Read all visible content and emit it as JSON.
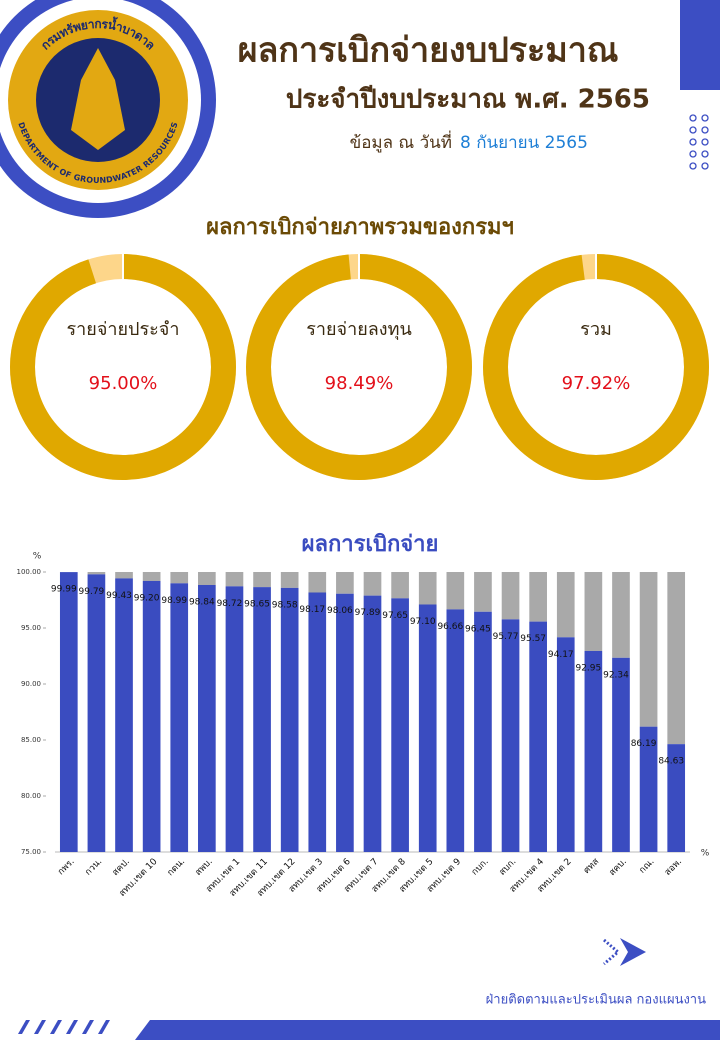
{
  "header": {
    "title": "ผลการเบิกจ่ายงบประมาณ",
    "subtitle": "ประจำปีงบประมาณ พ.ศ. 2565",
    "date_prefix": "ข้อมูล ณ วันที่",
    "date": "8 กันยายน 2565"
  },
  "logo": {
    "name_th": "กรมทรัพยากรน้ำบาดาล",
    "name_en": "DEPARTMENT OF GROUNDWATER RESOURCES"
  },
  "chart_data": [
    {
      "type": "donut",
      "title": "ผลการเบิกจ่ายภาพรวมของกรมฯ",
      "categories": [
        "รายจ่ายประจำ",
        "รายจ่ายลงทุน",
        "รวม"
      ],
      "values": [
        95,
        98.49,
        97.92
      ],
      "value_labels": [
        "95.00%",
        "98.49%",
        "97.92%"
      ],
      "ylim": [
        0,
        100
      ],
      "color": "#e0a800",
      "remainder_color": "#fdd68a"
    },
    {
      "type": "bar",
      "title": "ผลการเบิกจ่าย",
      "y_label": "%",
      "x_label": "%",
      "categories": [
        "กพร.",
        "กวน.",
        "สคป.",
        "สทบ.เขต 10",
        "กตน.",
        "สพบ.",
        "สทบ.เขต 1",
        "สทบ.เขต 11",
        "สทบ.เขต 12",
        "สทบ.เขต 3",
        "สทบ.เขต 6",
        "สทบ.เขต 7",
        "สทบ.เขต 8",
        "สทบ.เขต 5",
        "สทบ.เขต 9",
        "กบก.",
        "สบก.",
        "สทบ.เขต 4",
        "สทบ.เขต 2",
        "ศทส",
        "สคบ.",
        "กณ.",
        "สอพ."
      ],
      "values": [
        99.99,
        99.79,
        99.43,
        99.2,
        98.99,
        98.84,
        98.72,
        98.65,
        98.58,
        98.17,
        98.06,
        97.89,
        97.65,
        97.1,
        96.66,
        96.45,
        95.77,
        95.57,
        94.17,
        92.95,
        92.34,
        86.19,
        84.63
      ],
      "value_labels": [
        "99.99",
        "99.79",
        "99.43",
        "99.20",
        "98.99",
        "98.84",
        "98.72",
        "98.65",
        "98.58",
        "98.17",
        "98.06",
        "97.89",
        "97.65",
        "97.10",
        "96.66",
        "96.45",
        "95.77",
        "95.57",
        "94.17",
        "92.95",
        "92.34",
        "86.19",
        "84.63"
      ],
      "ylim": [
        75,
        100
      ],
      "yticks": [
        {
          "value": 100,
          "label": "100.00"
        },
        {
          "value": 95,
          "label": "95.00"
        },
        {
          "value": 90,
          "label": "90.00"
        },
        {
          "value": 85,
          "label": "85.00"
        },
        {
          "value": 80,
          "label": "80.00"
        },
        {
          "value": 75,
          "label": "75.00"
        }
      ],
      "color": "#3a4cc0",
      "background_color": "#a9a9a9"
    }
  ],
  "footer": {
    "text": "ฝ่ายติดตามและประเมินผล กองแผนงาน"
  }
}
